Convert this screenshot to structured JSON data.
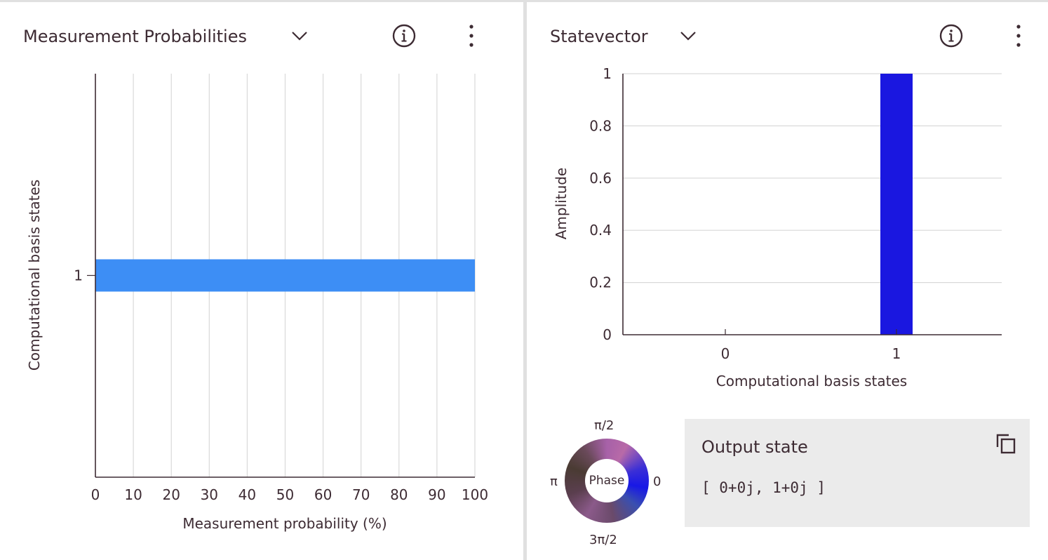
{
  "left_panel": {
    "title": "Measurement Probabilities",
    "icons": {
      "dropdown": "chevron-down-icon",
      "info": "info-icon",
      "more": "overflow-menu-vertical-icon"
    }
  },
  "right_panel": {
    "title": "Statevector",
    "icons": {
      "dropdown": "chevron-down-icon",
      "info": "info-icon",
      "more": "overflow-menu-vertical-icon"
    }
  },
  "probability_chart": {
    "chart_data": {
      "type": "bar",
      "orientation": "horizontal",
      "categories": [
        "1"
      ],
      "values": [
        100
      ],
      "xlabel": "Measurement probability (%)",
      "ylabel": "Computational basis states",
      "xlim": [
        0,
        100
      ],
      "xticks": [
        "0",
        "10",
        "20",
        "30",
        "40",
        "50",
        "60",
        "70",
        "80",
        "90",
        "100"
      ],
      "grid": true,
      "bar_color": "#3d8ef5"
    }
  },
  "statevector_chart": {
    "chart_data": {
      "type": "bar",
      "categories": [
        "0",
        "1"
      ],
      "values": [
        0,
        1
      ],
      "xlabel": "Computational basis states",
      "ylabel": "Amplitude",
      "ylim": [
        0,
        1
      ],
      "yticks": [
        "0",
        "0.2",
        "0.4",
        "0.6",
        "0.8",
        "1"
      ],
      "grid": true,
      "bar_color": "#1a17e0"
    }
  },
  "phase_wheel": {
    "center_label": "Phase",
    "top_label": "π/2",
    "left_label": "π",
    "right_label": "0",
    "bottom_label": "3π/2"
  },
  "output_state": {
    "title": "Output state",
    "value": "[ 0+0j, 1+0j ]",
    "copy_icon": "copy-icon"
  }
}
